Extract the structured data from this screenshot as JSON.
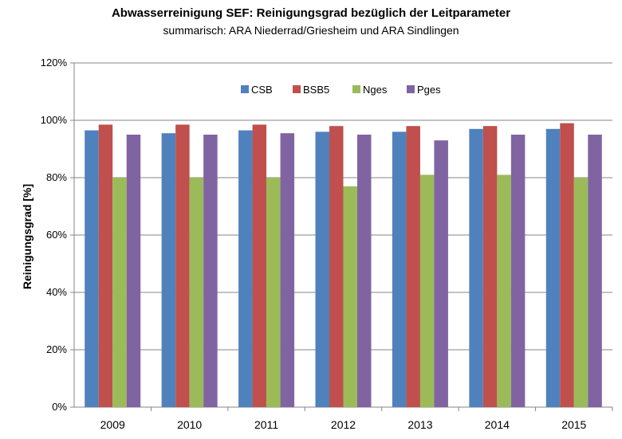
{
  "chart_data": {
    "type": "bar",
    "title": "Abwasserreinigung SEF: Reinigungsgrad bezüglich der Leitparameter",
    "subtitle": "summarisch: ARA Niederrad/Griesheim und ARA Sindlingen",
    "xlabel": "",
    "ylabel": "Reinigungsgrad [%]",
    "ylim": [
      0,
      120
    ],
    "yticks": [
      "0%",
      "20%",
      "40%",
      "60%",
      "80%",
      "100%",
      "120%"
    ],
    "grid": true,
    "legend_position": "top-center",
    "categories": [
      "2009",
      "2010",
      "2011",
      "2012",
      "2013",
      "2014",
      "2015"
    ],
    "series": [
      {
        "name": "CSB",
        "color": "#4F81BD",
        "values": [
          96.5,
          95.5,
          96.5,
          96,
          96,
          97,
          97
        ]
      },
      {
        "name": "BSB5",
        "color": "#C0504D",
        "values": [
          98.5,
          98.5,
          98.5,
          98,
          98,
          98,
          99
        ]
      },
      {
        "name": "Nges",
        "color": "#9BBB59",
        "values": [
          80,
          80,
          80,
          77,
          81,
          81,
          80
        ]
      },
      {
        "name": "Pges",
        "color": "#8064A2",
        "values": [
          95,
          95,
          95.5,
          95,
          93,
          95,
          95
        ]
      }
    ]
  }
}
